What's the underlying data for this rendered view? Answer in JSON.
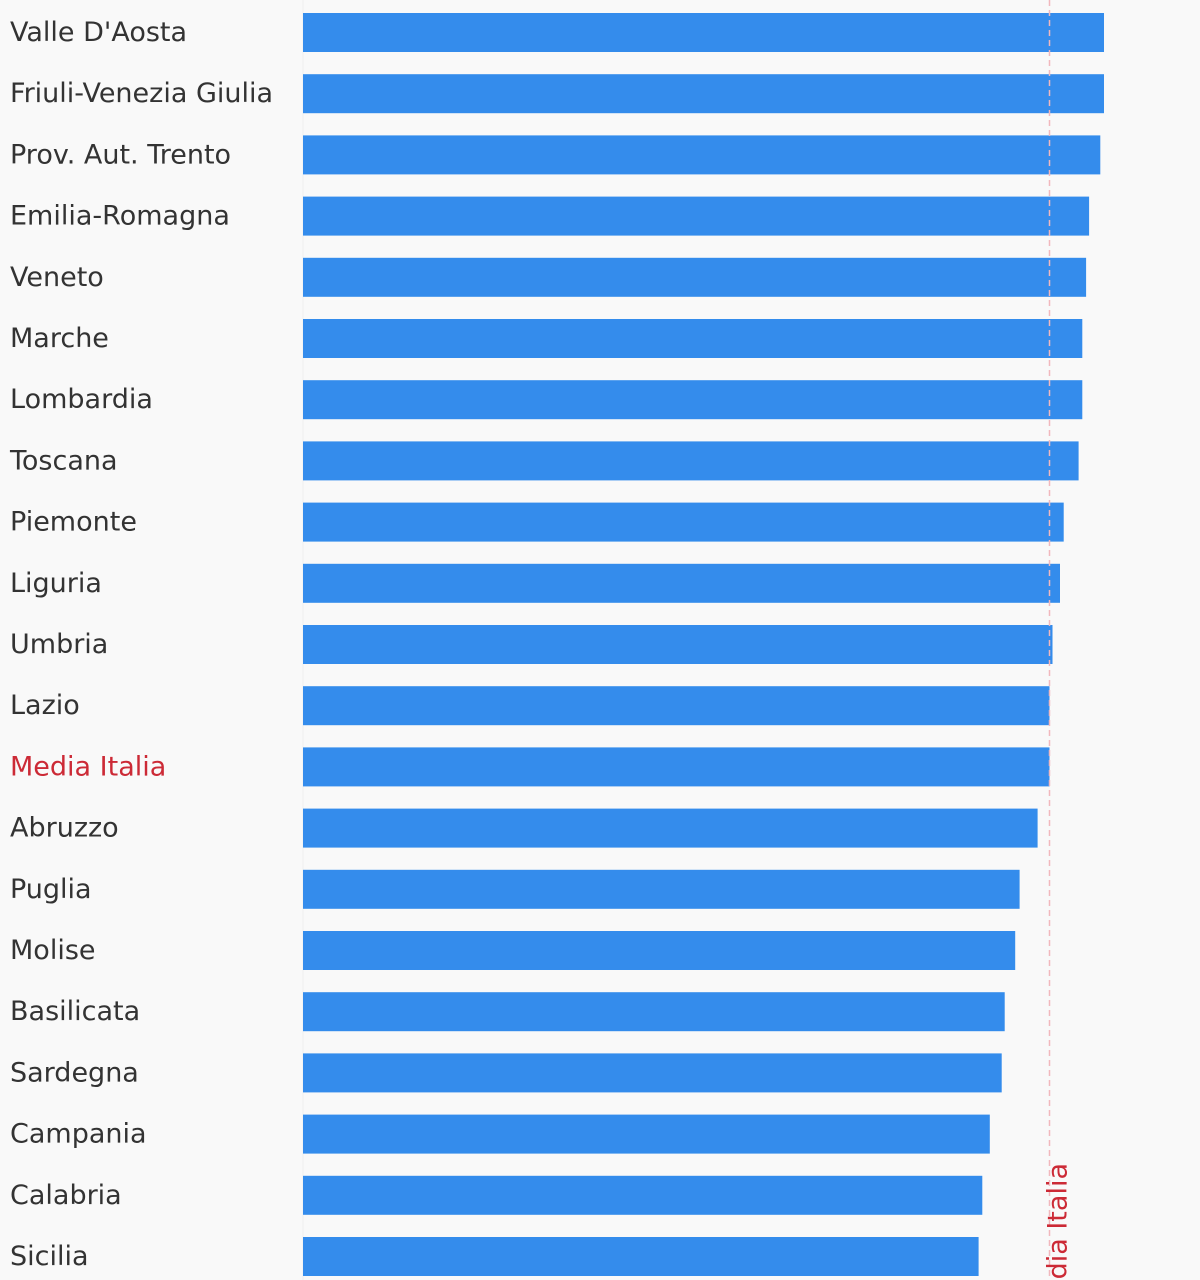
{
  "chart_data": {
    "type": "bar",
    "orientation": "horizontal",
    "categories": [
      "Valle D'Aosta",
      "Friuli-Venezia Giulia",
      "Prov. Aut. Trento",
      "Emilia-Romagna",
      "Veneto",
      "Marche",
      "Lombardia",
      "Toscana",
      "Piemonte",
      "Liguria",
      "Umbria",
      "Lazio",
      "Media Italia",
      "Abruzzo",
      "Puglia",
      "Molise",
      "Basilicata",
      "Sardegna",
      "Campania",
      "Calabria",
      "Sicilia"
    ],
    "values": [
      107.3,
      107.3,
      106.8,
      105.3,
      104.9,
      104.4,
      104.4,
      103.9,
      101.9,
      101.4,
      100.4,
      100.0,
      100.0,
      98.4,
      96.0,
      95.4,
      94.0,
      93.6,
      92.0,
      91.0,
      90.5
    ],
    "xlim": [
      0,
      120
    ],
    "highlight_category": "Media Italia",
    "reference_line": {
      "value": 100.0,
      "label": "Media Italia"
    },
    "colors": {
      "bar": "#348cec",
      "label": "#333333",
      "highlight_label": "#cc2a36",
      "reference_line": "#f2b8bd",
      "background": "#f9f9f9"
    },
    "grid": false,
    "legend": "none"
  }
}
